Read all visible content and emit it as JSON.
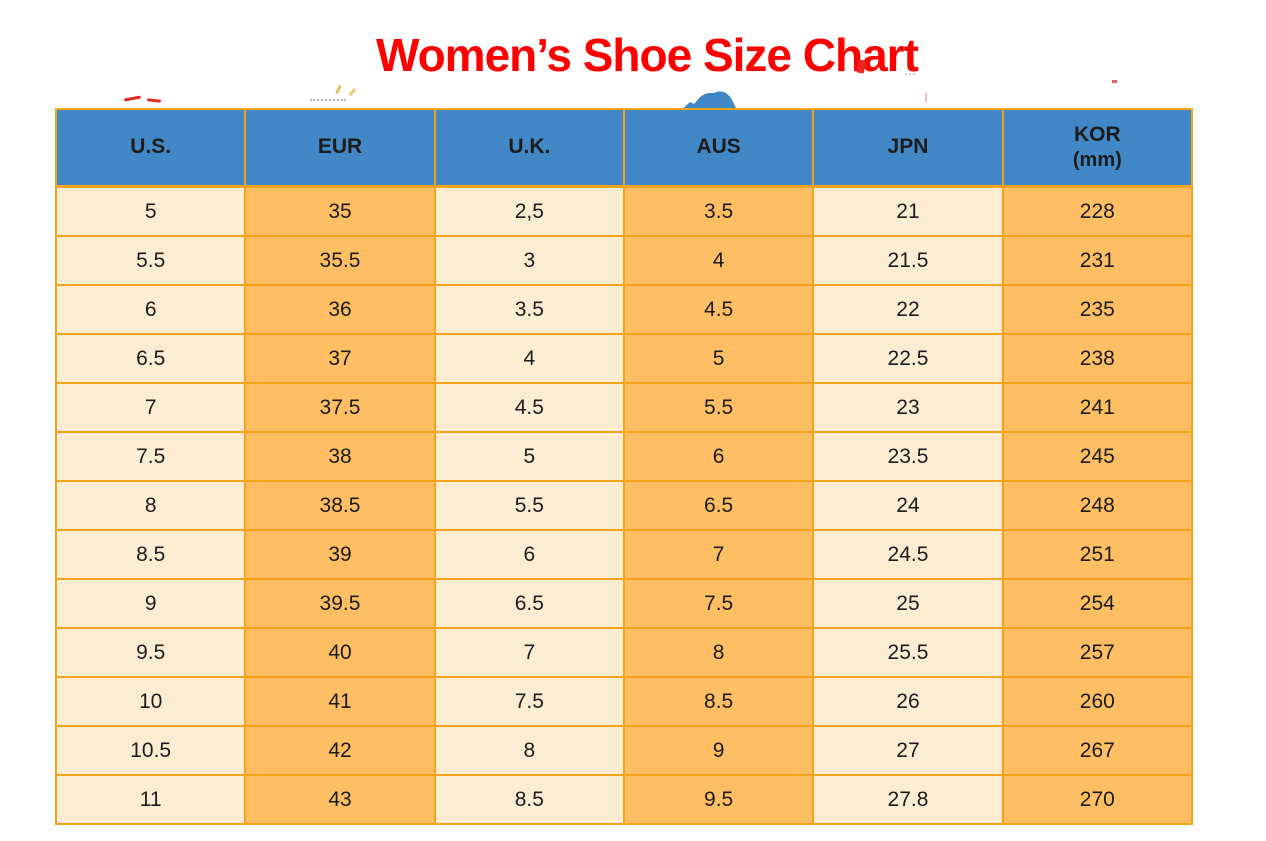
{
  "page": {
    "title": "Women’s Shoe Size Chart"
  },
  "colors": {
    "title": "#FF0000",
    "header_bg": "#4288C6",
    "grid_border": "#F5A31C",
    "column_cream": "#FCEDD2",
    "column_orange": "#FEBE63",
    "cell_text": "#1C1C1C"
  },
  "table": {
    "columns": [
      {
        "label": "U.S."
      },
      {
        "label": "EUR"
      },
      {
        "label": "U.K."
      },
      {
        "label": "AUS"
      },
      {
        "label": "JPN"
      },
      {
        "label": "KOR",
        "sublabel": "(mm)"
      }
    ],
    "rows": [
      [
        "5",
        "35",
        "2,5",
        "3.5",
        "21",
        "228"
      ],
      [
        "5.5",
        "35.5",
        "3",
        "4",
        "21.5",
        "231"
      ],
      [
        "6",
        "36",
        "3.5",
        "4.5",
        "22",
        "235"
      ],
      [
        "6.5",
        "37",
        "4",
        "5",
        "22.5",
        "238"
      ],
      [
        "7",
        "37.5",
        "4.5",
        "5.5",
        "23",
        "241"
      ],
      [
        "7.5",
        "38",
        "5",
        "6",
        "23.5",
        "245"
      ],
      [
        "8",
        "38.5",
        "5.5",
        "6.5",
        "24",
        "248"
      ],
      [
        "8.5",
        "39",
        "6",
        "7",
        "24.5",
        "251"
      ],
      [
        "9",
        "39.5",
        "6.5",
        "7.5",
        "25",
        "254"
      ],
      [
        "9.5",
        "40",
        "7",
        "8",
        "25.5",
        "257"
      ],
      [
        "10",
        "41",
        "7.5",
        "8.5",
        "26",
        "260"
      ],
      [
        "10.5",
        "42",
        "8",
        "9",
        "27",
        "267"
      ],
      [
        "11",
        "43",
        "8.5",
        "9.5",
        "27.8",
        "270"
      ]
    ]
  },
  "chart_data": {
    "type": "table",
    "title": "Women’s Shoe Size Chart",
    "columns": [
      "U.S.",
      "EUR",
      "U.K.",
      "AUS",
      "JPN",
      "KOR (mm)"
    ],
    "rows": [
      [
        "5",
        "35",
        "2,5",
        "3.5",
        "21",
        "228"
      ],
      [
        "5.5",
        "35.5",
        "3",
        "4",
        "21.5",
        "231"
      ],
      [
        "6",
        "36",
        "3.5",
        "4.5",
        "22",
        "235"
      ],
      [
        "6.5",
        "37",
        "4",
        "5",
        "22.5",
        "238"
      ],
      [
        "7",
        "37.5",
        "4.5",
        "5.5",
        "23",
        "241"
      ],
      [
        "7.5",
        "38",
        "5",
        "6",
        "23.5",
        "245"
      ],
      [
        "8",
        "38.5",
        "5.5",
        "6.5",
        "24",
        "248"
      ],
      [
        "8.5",
        "39",
        "6",
        "7",
        "24.5",
        "251"
      ],
      [
        "9",
        "39.5",
        "6.5",
        "7.5",
        "25",
        "254"
      ],
      [
        "9.5",
        "40",
        "7",
        "8",
        "25.5",
        "257"
      ],
      [
        "10",
        "41",
        "7.5",
        "8.5",
        "26",
        "260"
      ],
      [
        "10.5",
        "42",
        "8",
        "9",
        "27",
        "267"
      ],
      [
        "11",
        "43",
        "8.5",
        "9.5",
        "27.8",
        "270"
      ]
    ]
  }
}
